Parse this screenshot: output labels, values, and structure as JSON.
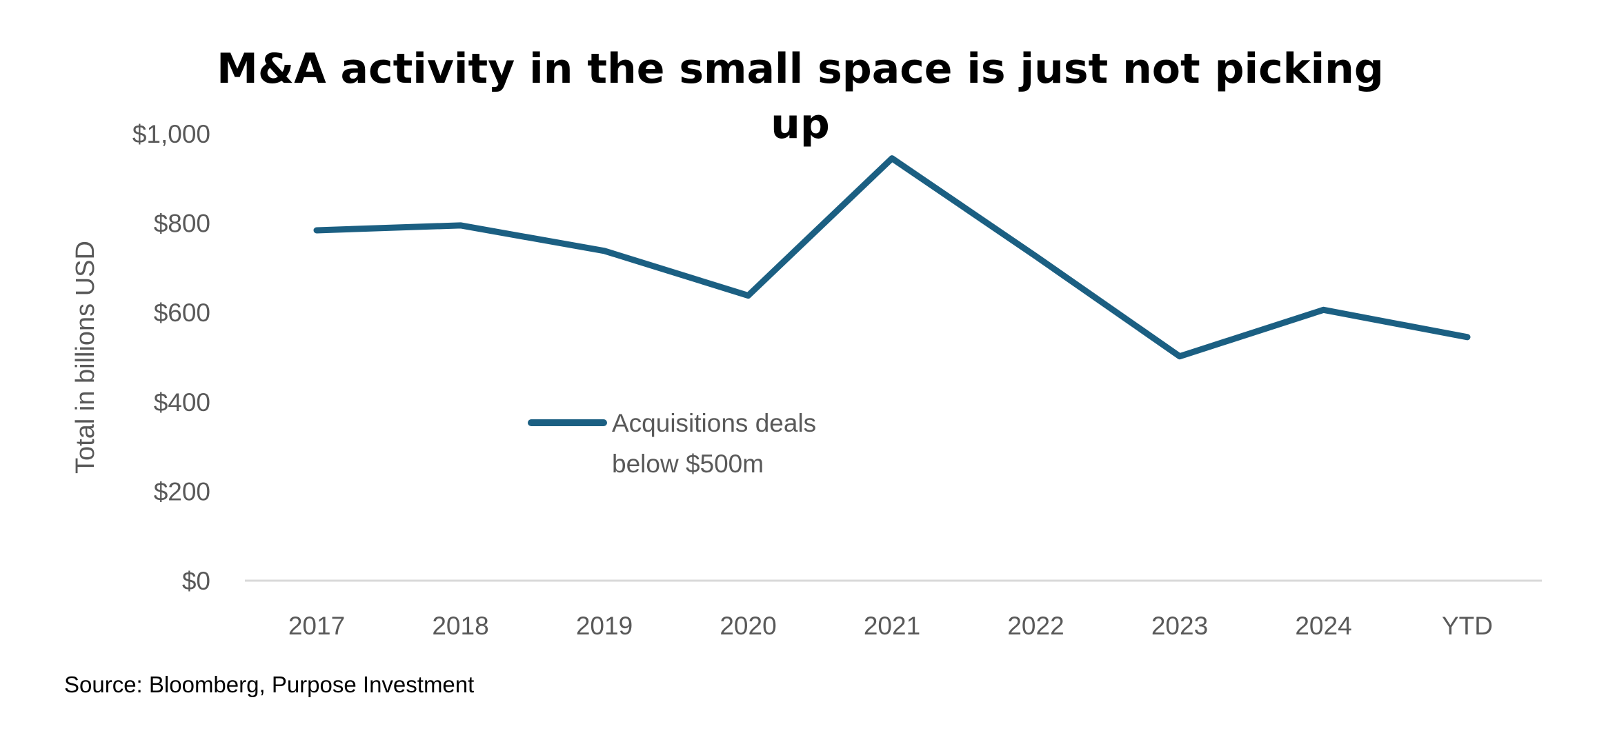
{
  "chart_data": {
    "type": "line",
    "title": "M&A activity in the small space is just not picking up",
    "title_lines": [
      "M&A activity in the small space is just not picking",
      "up"
    ],
    "categories": [
      "2017",
      "2018",
      "2019",
      "2020",
      "2021",
      "2022",
      "2023",
      "2024",
      "YTD"
    ],
    "series": [
      {
        "name": "Acquisitions deals below $500m",
        "name_lines": [
          "Acquisitions deals",
          "below $500m"
        ],
        "values": [
          784,
          795,
          738,
          638,
          945,
          726,
          502,
          606,
          545
        ],
        "color": "#1b5f82"
      }
    ],
    "xlabel": "",
    "ylabel": "Total in billions USD",
    "ylim": [
      0,
      1000
    ],
    "yticks": [
      0,
      200,
      400,
      600,
      800,
      1000
    ],
    "ytick_labels": [
      "$0",
      "$200",
      "$400",
      "$600",
      "$800",
      "$1,000"
    ],
    "grid": false,
    "legend_placement": "center-left inside plot",
    "source": "Source: Bloomberg, Purpose Investment"
  }
}
